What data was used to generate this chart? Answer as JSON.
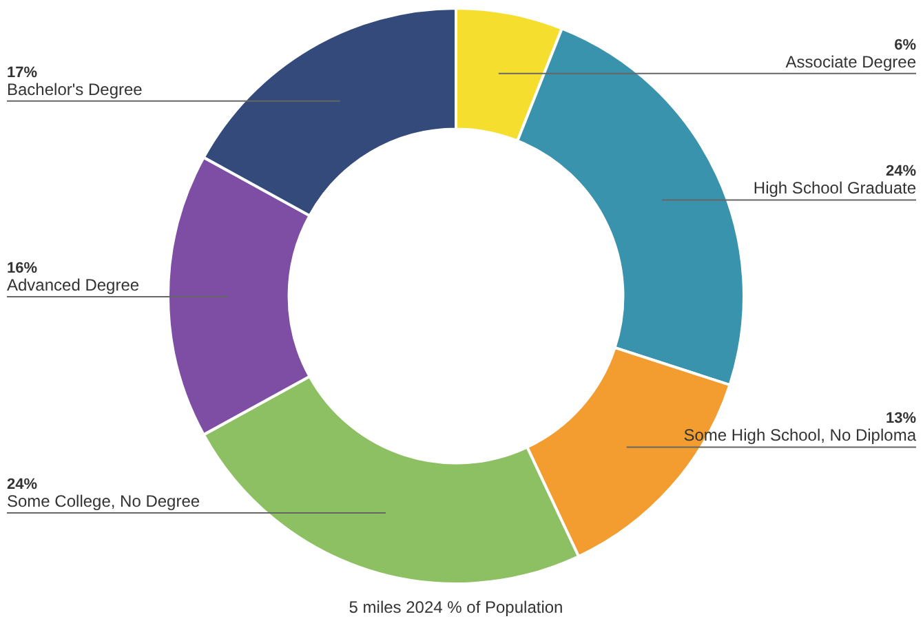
{
  "chart_data": {
    "type": "donut",
    "title": "5 miles 2024 % of Population",
    "categories": [
      "Associate Degree",
      "High School Graduate",
      "Some High School, No Diploma",
      "Some College, No Degree",
      "Advanced Degree",
      "Bachelor's Degree"
    ],
    "values": [
      6,
      24,
      13,
      24,
      16,
      17
    ],
    "value_labels": [
      "6%",
      "24%",
      "13%",
      "24%",
      "16%",
      "17%"
    ],
    "colors": [
      "#f5de2e",
      "#3a93ad",
      "#f39c2f",
      "#8dc063",
      "#7d4ea3",
      "#334a7a"
    ],
    "legend": false
  }
}
